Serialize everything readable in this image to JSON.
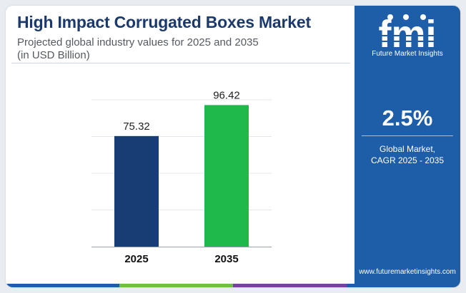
{
  "header": {
    "title": "High Impact Corrugated Boxes Market",
    "subtitle_line1": "Projected global industry values for 2025 and 2035",
    "subtitle_line2": "(in USD Billion)"
  },
  "chart_data": {
    "type": "bar",
    "categories": [
      "2025",
      "2035"
    ],
    "values": [
      75.32,
      96.42
    ],
    "data_labels": [
      "75.32",
      "96.42"
    ],
    "bar_colors": [
      "#173d74",
      "#1fb84a"
    ],
    "ylim": [
      0,
      100
    ],
    "grid": true,
    "title": "",
    "xlabel": "",
    "ylabel": ""
  },
  "sidebar": {
    "logo_letters": "fmi",
    "logo_text": "Future Market Insights",
    "cagr_value": "2.5%",
    "cagr_label_line1": "Global Market,",
    "cagr_label_line2": "CAGR 2025 - 2035",
    "website": "www.futuremarketinsights.com",
    "bg_color": "#1e5da8"
  },
  "bottom_strip_colors": [
    "#1e5da8",
    "#6fbf44",
    "#7b3fa0",
    "#1e5da8"
  ]
}
